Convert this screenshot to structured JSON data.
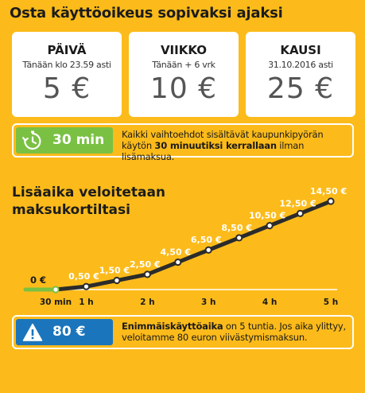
{
  "page": {
    "title": "Osta käyttöoikeus sopivaksi ajaksi",
    "colors": {
      "background": "#FCBB1A",
      "card": "#FFFFFF",
      "green": "#7AC143",
      "blue": "#1A75BC",
      "line": "#2B2B2B"
    }
  },
  "tickets": [
    {
      "name": "PÄIVÄ",
      "validity": "Tänään klo 23.59 asti",
      "price": "5 €"
    },
    {
      "name": "VIIKKO",
      "validity": "Tänään + 6 vrk",
      "price": "10 €"
    },
    {
      "name": "KAUSI",
      "validity": "31.10.2016 asti",
      "price": "25 €"
    }
  ],
  "info_30min": {
    "icon": "stopwatch-icon",
    "badge_label": "30 min",
    "text_before": "Kaikki vaihtoehdot sisältävät kaupunkipyörän käytön ",
    "text_bold": "30 minuutiksi kerrallaan",
    "text_after": " ilman lisämaksua."
  },
  "info_max": {
    "icon": "warning-icon",
    "badge_label": "80 €",
    "text_bold": "Enimmäiskäyttöaika",
    "text_after": " on 5 tuntia. Jos aika ylittyy, veloitamme 80 euron viivästymismaksun."
  },
  "chart_data": {
    "type": "line",
    "title": "Lisäaika veloitetaan maksukortiltasi",
    "x_ticks": [
      {
        "x": 0.5,
        "label": "30 min"
      },
      {
        "x": 1,
        "label": "1 h"
      },
      {
        "x": 2,
        "label": "2 h"
      },
      {
        "x": 3,
        "label": "3 h"
      },
      {
        "x": 4,
        "label": "4 h"
      },
      {
        "x": 5,
        "label": "5 h"
      }
    ],
    "free_segment": {
      "x": [
        0,
        0.5
      ],
      "y": [
        0,
        0
      ],
      "label": "0 €"
    },
    "points": [
      {
        "x": 0.5,
        "y": 0,
        "label": ""
      },
      {
        "x": 1,
        "y": 0.5,
        "label": "0,50 €"
      },
      {
        "x": 1.5,
        "y": 1.5,
        "label": "1,50 €"
      },
      {
        "x": 2,
        "y": 2.5,
        "label": "2,50 €"
      },
      {
        "x": 2.5,
        "y": 4.5,
        "label": "4,50 €"
      },
      {
        "x": 3,
        "y": 6.5,
        "label": "6,50 €"
      },
      {
        "x": 3.5,
        "y": 8.5,
        "label": "8,50 €"
      },
      {
        "x": 4,
        "y": 10.5,
        "label": "10,50 €"
      },
      {
        "x": 4.5,
        "y": 12.5,
        "label": "12,50 €"
      },
      {
        "x": 5,
        "y": 14.5,
        "label": "14,50 €"
      }
    ],
    "xlim": [
      0,
      5
    ],
    "ylim": [
      0,
      14.5
    ],
    "grid": false,
    "legend": "none"
  }
}
